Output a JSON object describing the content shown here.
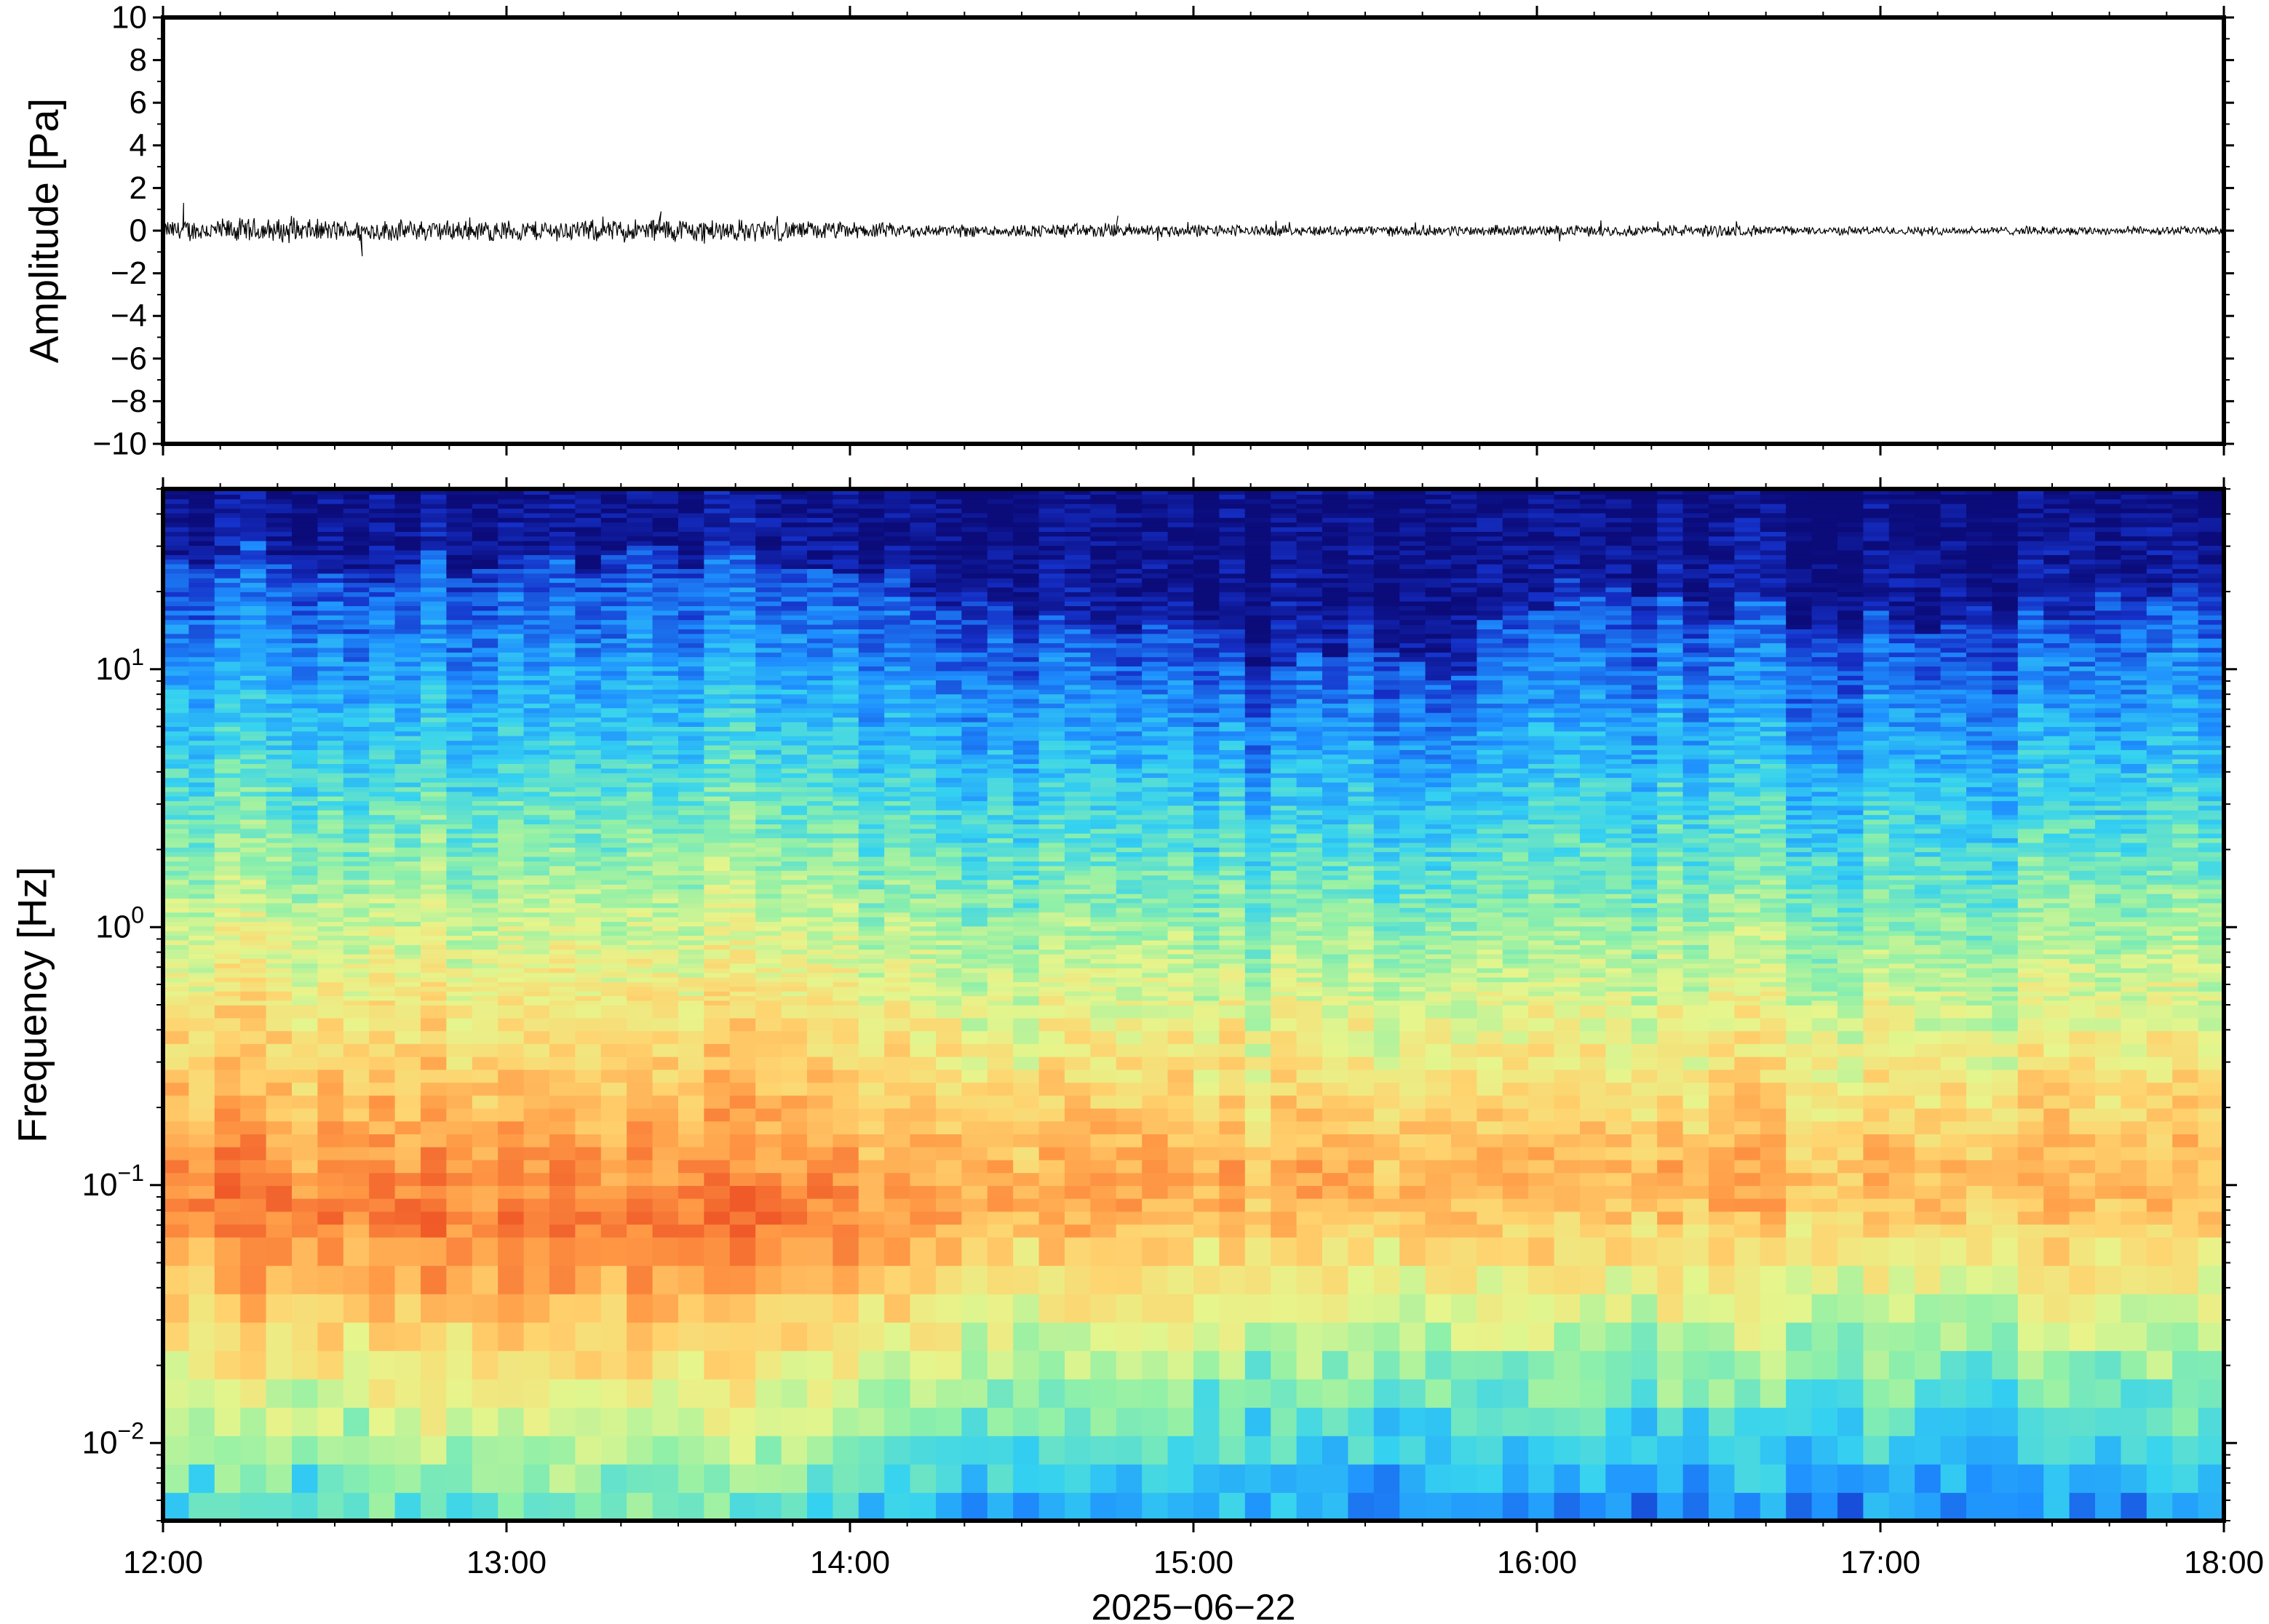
{
  "chart_data": [
    {
      "type": "line",
      "ylabel": "Amplitude [Pa]",
      "ylim": [
        -10,
        10
      ],
      "y_ticks": [
        "10",
        "8",
        "6",
        "4",
        "2",
        "0",
        "−2",
        "−4",
        "−6",
        "−8",
        "−10"
      ],
      "y_tick_values": [
        10,
        8,
        6,
        4,
        2,
        0,
        -2,
        -4,
        -6,
        -8,
        -10
      ],
      "x_range": [
        "2025-06-22 12:00",
        "2025-06-22 18:00"
      ],
      "series": [
        {
          "color": "#000000",
          "envelope_hours": [
            12.0,
            12.25,
            12.5,
            12.75,
            13.0,
            13.25,
            13.5,
            13.75,
            14.0,
            14.25,
            14.5,
            14.75,
            15.0,
            15.25,
            15.5,
            15.75,
            16.0,
            16.25,
            16.5,
            16.75,
            17.0,
            17.25,
            17.5,
            17.75,
            18.0
          ],
          "envelope_pa": [
            0.5,
            0.6,
            0.5,
            0.5,
            0.5,
            0.5,
            0.6,
            0.5,
            0.4,
            0.3,
            0.3,
            0.35,
            0.3,
            0.25,
            0.25,
            0.25,
            0.25,
            0.25,
            0.3,
            0.2,
            0.2,
            0.2,
            0.2,
            0.2,
            0.2
          ],
          "peak_pa": [
            1.3,
            -1.2,
            0.9,
            0.7
          ]
        }
      ]
    },
    {
      "type": "heatmap",
      "ylabel": "Frequency [Hz]",
      "xlabel": "2025−06−22",
      "y_scale": "log",
      "ylim": [
        0.005,
        50
      ],
      "y_ticks": [
        {
          "base": "10",
          "exp": "1",
          "value": 10
        },
        {
          "base": "10",
          "exp": "0",
          "value": 1
        },
        {
          "base": "10",
          "exp": "−1",
          "value": 0.1
        },
        {
          "base": "10",
          "exp": "−2",
          "value": 0.01
        }
      ],
      "x_ticks": [
        "12:00",
        "13:00",
        "14:00",
        "15:00",
        "16:00",
        "17:00",
        "18:00"
      ],
      "x_tick_hours": [
        12,
        13,
        14,
        15,
        16,
        17,
        18
      ],
      "colormap": "jet",
      "colormap_stops": [
        "#0b0b7a",
        "#1530c8",
        "#1e8fff",
        "#35d2f0",
        "#8ff0a8",
        "#e6f58c",
        "#ffd26e",
        "#ff9a46",
        "#f05a28"
      ],
      "time_bins_hours": [
        12.0,
        12.5,
        13.0,
        13.5,
        14.0,
        14.5,
        15.0,
        15.25,
        15.5,
        15.75,
        16.0,
        16.5,
        17.0,
        17.5,
        18.0
      ],
      "dark_blue_upper_edge_hz": [
        30,
        25,
        25,
        28,
        25,
        15,
        15,
        9,
        15,
        9,
        20,
        18,
        15,
        18,
        20
      ],
      "warm_band_peak_hz": [
        0.08,
        0.08,
        0.07,
        0.07,
        0.08,
        0.09,
        0.1,
        0.1,
        0.1,
        0.1,
        0.1,
        0.1,
        0.1,
        0.1,
        0.1
      ],
      "warm_band_strength": [
        0.95,
        0.95,
        0.95,
        1.0,
        0.9,
        0.7,
        0.75,
        0.65,
        0.62,
        0.6,
        0.65,
        0.65,
        0.6,
        0.6,
        0.62
      ]
    }
  ]
}
